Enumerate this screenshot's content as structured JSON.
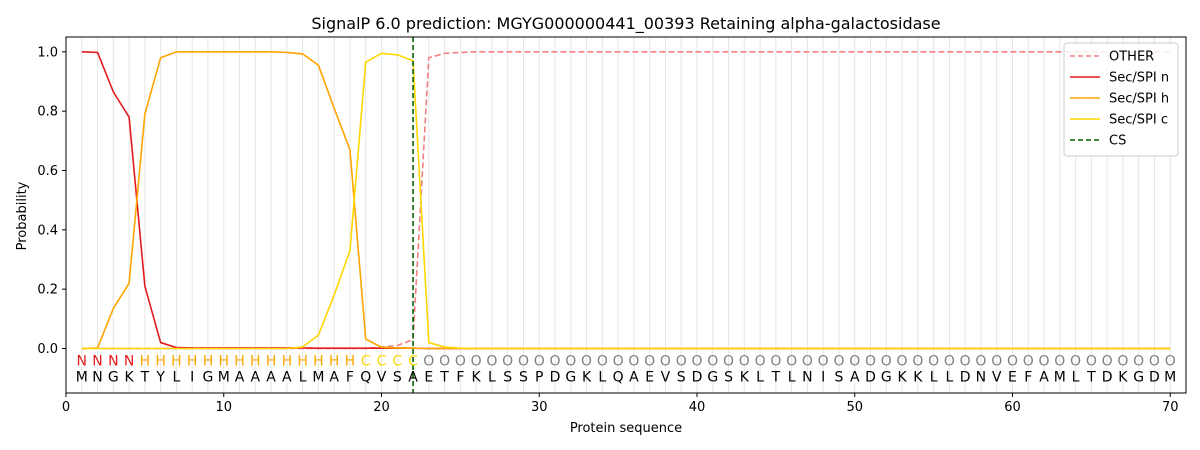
{
  "chart_data": {
    "type": "line",
    "title": "SignalP 6.0 prediction: MGYG000000441_00393 Retaining alpha-galactosidase",
    "xlabel": "Protein sequence",
    "ylabel": "Probability",
    "xlim": [
      0,
      71
    ],
    "ylim": [
      -0.15,
      1.05
    ],
    "xticks": [
      0,
      10,
      20,
      30,
      40,
      50,
      60,
      70
    ],
    "yticks": [
      0.0,
      0.2,
      0.4,
      0.6,
      0.8,
      1.0
    ],
    "xtick_labels": [
      "0",
      "10",
      "20",
      "30",
      "40",
      "50",
      "60",
      "70"
    ],
    "ytick_labels": [
      "0.0",
      "0.2",
      "0.4",
      "0.6",
      "0.8",
      "1.0"
    ],
    "grid": "vertical",
    "legend_position": "top-right",
    "x": [
      1,
      2,
      3,
      4,
      5,
      6,
      7,
      8,
      9,
      10,
      11,
      12,
      13,
      14,
      15,
      16,
      17,
      18,
      19,
      20,
      21,
      22,
      23,
      24,
      25,
      26,
      27,
      28,
      29,
      30,
      31,
      32,
      33,
      34,
      35,
      36,
      37,
      38,
      39,
      40,
      41,
      42,
      43,
      44,
      45,
      46,
      47,
      48,
      49,
      50,
      51,
      52,
      53,
      54,
      55,
      56,
      57,
      58,
      59,
      60,
      61,
      62,
      63,
      64,
      65,
      66,
      67,
      68,
      69,
      70
    ],
    "series": [
      {
        "name": "OTHER",
        "color": "#f08080",
        "dash": "dashed",
        "values": [
          0,
          0,
          0,
          0,
          0,
          0,
          0,
          0,
          0,
          0,
          0,
          0,
          0,
          0,
          0,
          0,
          0,
          0,
          0,
          0.005,
          0.01,
          0.03,
          0.98,
          0.995,
          0.998,
          1,
          1,
          1,
          1,
          1,
          1,
          1,
          1,
          1,
          1,
          1,
          1,
          1,
          1,
          1,
          1,
          1,
          1,
          1,
          1,
          1,
          1,
          1,
          1,
          1,
          1,
          1,
          1,
          1,
          1,
          1,
          1,
          1,
          1,
          1,
          1,
          1,
          1,
          1,
          1,
          1,
          1,
          1,
          1,
          1
        ]
      },
      {
        "name": "Sec/SPI n",
        "color": "#e41a1c",
        "dash": "solid",
        "values": [
          1.0,
          0.998,
          0.865,
          0.78,
          0.21,
          0.02,
          0.003,
          0.002,
          0.002,
          0.002,
          0.002,
          0.002,
          0.002,
          0.002,
          0.002,
          0.001,
          0.001,
          0.001,
          0.001,
          0.001,
          0.001,
          0.001,
          0,
          0,
          0,
          0,
          0,
          0,
          0,
          0,
          0,
          0,
          0,
          0,
          0,
          0,
          0,
          0,
          0,
          0,
          0,
          0,
          0,
          0,
          0,
          0,
          0,
          0,
          0,
          0,
          0,
          0,
          0,
          0,
          0,
          0,
          0,
          0,
          0,
          0,
          0,
          0,
          0,
          0,
          0,
          0,
          0,
          0,
          0,
          0
        ]
      },
      {
        "name": "Sec/SPI h",
        "color": "#ffa500",
        "dash": "solid",
        "values": [
          0,
          0.002,
          0.135,
          0.22,
          0.79,
          0.98,
          1.0,
          1.0,
          1.0,
          1.0,
          1.0,
          1.0,
          1.0,
          0.998,
          0.993,
          0.955,
          0.81,
          0.67,
          0.032,
          0.004,
          0.002,
          0.001,
          0,
          0,
          0,
          0,
          0,
          0,
          0,
          0,
          0,
          0,
          0,
          0,
          0,
          0,
          0,
          0,
          0,
          0,
          0,
          0,
          0,
          0,
          0,
          0,
          0,
          0,
          0,
          0,
          0,
          0,
          0,
          0,
          0,
          0,
          0,
          0,
          0,
          0,
          0,
          0,
          0,
          0,
          0,
          0,
          0,
          0,
          0,
          0
        ]
      },
      {
        "name": "Sec/SPI c",
        "color": "#ffd700",
        "dash": "solid",
        "values": [
          0,
          0,
          0,
          0,
          0,
          0,
          0,
          0,
          0,
          0,
          0,
          0,
          0,
          0,
          0.005,
          0.045,
          0.18,
          0.33,
          0.965,
          0.995,
          0.99,
          0.97,
          0.02,
          0.005,
          0.001,
          0,
          0,
          0,
          0,
          0,
          0,
          0,
          0,
          0,
          0,
          0,
          0,
          0,
          0,
          0,
          0,
          0,
          0,
          0,
          0,
          0,
          0,
          0,
          0,
          0,
          0,
          0,
          0,
          0,
          0,
          0,
          0,
          0,
          0,
          0,
          0,
          0,
          0,
          0,
          0,
          0,
          0,
          0,
          0,
          0
        ]
      }
    ],
    "cleavage_site": {
      "name": "CS",
      "x": 22,
      "color": "#006400",
      "dash": "dashed"
    },
    "sequence": [
      "M",
      "N",
      "G",
      "K",
      "T",
      "Y",
      "L",
      "I",
      "G",
      "M",
      "A",
      "A",
      "A",
      "A",
      "L",
      "M",
      "A",
      "F",
      "Q",
      "V",
      "S",
      "A",
      "E",
      "T",
      "F",
      "K",
      "L",
      "S",
      "S",
      "P",
      "D",
      "G",
      "K",
      "L",
      "Q",
      "A",
      "E",
      "V",
      "S",
      "D",
      "G",
      "S",
      "K",
      "L",
      "T",
      "L",
      "N",
      "I",
      "S",
      "A",
      "D",
      "G",
      "K",
      "K",
      "L",
      "L",
      "D",
      "N",
      "V",
      "E",
      "F",
      "A",
      "M",
      "L",
      "T",
      "D",
      "K",
      "G",
      "D",
      "M"
    ],
    "labels": [
      "N",
      "N",
      "N",
      "N",
      "H",
      "H",
      "H",
      "H",
      "H",
      "H",
      "H",
      "H",
      "H",
      "H",
      "H",
      "H",
      "H",
      "H",
      "C",
      "C",
      "C",
      "C",
      "O",
      "O",
      "O",
      "O",
      "O",
      "O",
      "O",
      "O",
      "O",
      "O",
      "O",
      "O",
      "O",
      "O",
      "O",
      "O",
      "O",
      "O",
      "O",
      "O",
      "O",
      "O",
      "O",
      "O",
      "O",
      "O",
      "O",
      "O",
      "O",
      "O",
      "O",
      "O",
      "O",
      "O",
      "O",
      "O",
      "O",
      "O",
      "O",
      "O",
      "O",
      "O",
      "O",
      "O",
      "O",
      "O",
      "O",
      "O"
    ],
    "label_colors": {
      "N": "#e41a1c",
      "H": "#ffa500",
      "C": "#ffd700",
      "O": "#808080"
    }
  }
}
